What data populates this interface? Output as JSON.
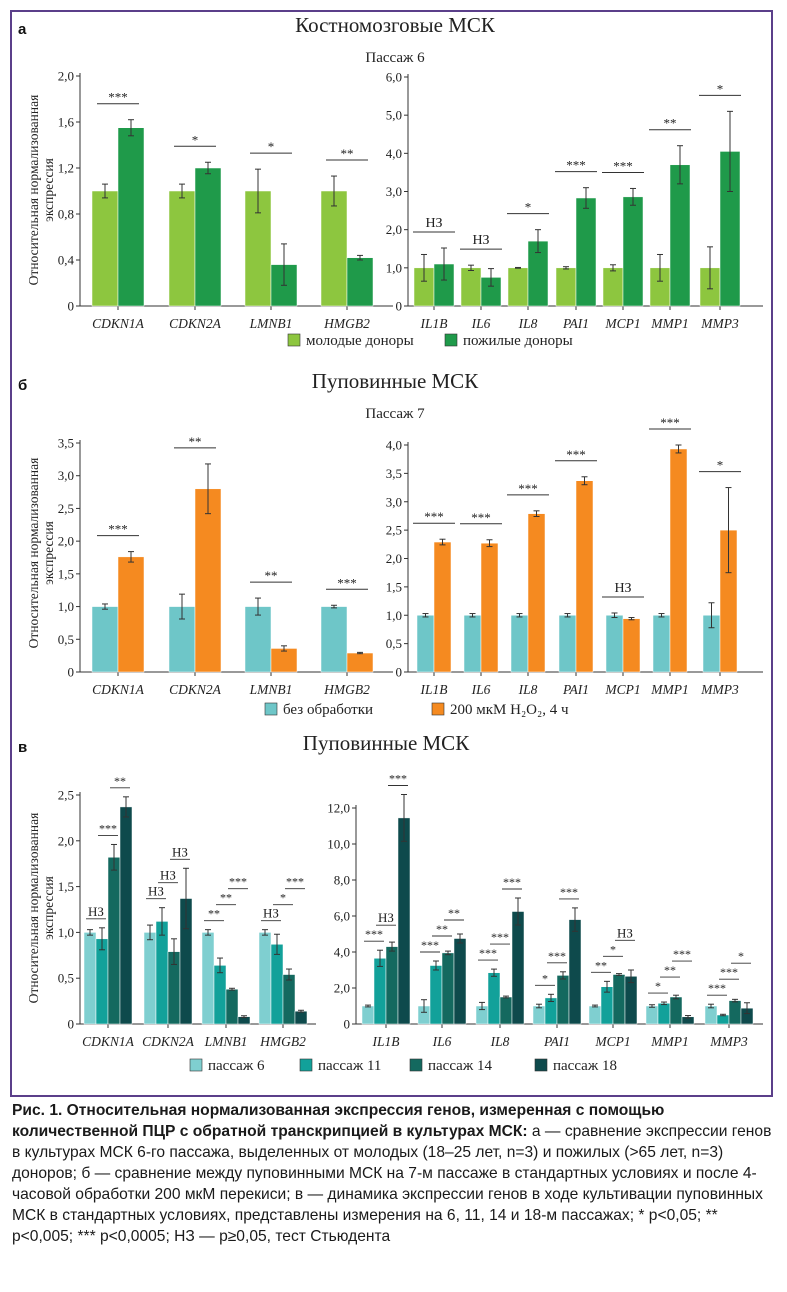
{
  "panels": [
    {
      "letter": "а",
      "title": "Костномозговые МСК",
      "subtitle": "Пассаж 6",
      "ylabel": "Относительная нормализованная экспрессия",
      "legend": [
        {
          "label": "молодые доноры",
          "color": "#8dc63f"
        },
        {
          "label": "пожилые доноры",
          "color": "#1f9a4a"
        }
      ]
    },
    {
      "letter": "б",
      "title": "Пуповинные МСК",
      "subtitle": "Пассаж 7",
      "ylabel": "Относительная нормализованная экспрессия",
      "legend": [
        {
          "label": "без обработки",
          "color": "#6ec6c8"
        },
        {
          "label": "200 мкМ H₂O₂, 4 ч",
          "color": "#f58a20"
        }
      ]
    },
    {
      "letter": "в",
      "title": "Пуповинные МСК",
      "subtitle": "",
      "ylabel": "Относительная нормализованная экспрессия",
      "legend": [
        {
          "label": "пассаж 6",
          "color": "#7fcfd0"
        },
        {
          "label": "пассаж 11",
          "color": "#12a19a"
        },
        {
          "label": "пассаж 14",
          "color": "#14695f"
        },
        {
          "label": "пассаж 18",
          "color": "#0e4a4c"
        }
      ]
    }
  ],
  "chart_data": [
    {
      "type": "bar",
      "panel": "а-left",
      "categories": [
        "CDKN1A",
        "CDKN2A",
        "LMNB1",
        "HMGB2"
      ],
      "ylim": [
        0,
        2.0
      ],
      "yticks": [
        "0",
        "0,4",
        "0,8",
        "1,2",
        "1,6",
        "2,0"
      ],
      "ytick_values": [
        0,
        0.4,
        0.8,
        1.2,
        1.6,
        2.0
      ],
      "series": [
        {
          "name": "молодые доноры",
          "color": "#8dc63f",
          "values": [
            1.0,
            1.0,
            1.0,
            1.0
          ],
          "errors": [
            0.06,
            0.06,
            0.19,
            0.13
          ]
        },
        {
          "name": "пожилые доноры",
          "color": "#1f9a4a",
          "values": [
            1.55,
            1.2,
            0.36,
            0.42
          ],
          "errors": [
            0.07,
            0.05,
            0.18,
            0.02
          ]
        }
      ],
      "significance": [
        "***",
        "*",
        "*",
        "**"
      ]
    },
    {
      "type": "bar",
      "panel": "а-right",
      "categories": [
        "IL1B",
        "IL6",
        "IL8",
        "PAI1",
        "MCP1",
        "MMP1",
        "MMP3"
      ],
      "ylim": [
        0,
        6.0
      ],
      "yticks": [
        "0",
        "1,0",
        "2,0",
        "3,0",
        "4,0",
        "5,0",
        "6,0"
      ],
      "ytick_values": [
        0,
        1,
        2,
        3,
        4,
        5,
        6
      ],
      "series": [
        {
          "name": "молодые доноры",
          "color": "#8dc63f",
          "values": [
            1.0,
            1.0,
            1.0,
            1.0,
            1.0,
            1.0,
            1.0
          ],
          "errors": [
            0.35,
            0.07,
            0.01,
            0.03,
            0.08,
            0.35,
            0.55
          ]
        },
        {
          "name": "пожилые доноры",
          "color": "#1f9a4a",
          "values": [
            1.1,
            0.75,
            1.7,
            2.83,
            2.86,
            3.7,
            4.05
          ],
          "errors": [
            0.42,
            0.23,
            0.3,
            0.27,
            0.22,
            0.5,
            1.05
          ]
        }
      ],
      "significance": [
        "НЗ",
        "НЗ",
        "*",
        "***",
        "***",
        "**",
        "*"
      ]
    },
    {
      "type": "bar",
      "panel": "б-left",
      "categories": [
        "CDKN1A",
        "CDKN2A",
        "LMNB1",
        "HMGB2"
      ],
      "ylim": [
        0,
        3.5
      ],
      "yticks": [
        "0",
        "0,5",
        "1,0",
        "1,5",
        "2,0",
        "2,5",
        "3,0",
        "3,5"
      ],
      "ytick_values": [
        0,
        0.5,
        1.0,
        1.5,
        2.0,
        2.5,
        3.0,
        3.5
      ],
      "series": [
        {
          "name": "без обработки",
          "color": "#6ec6c8",
          "values": [
            1.0,
            1.0,
            1.0,
            1.0
          ],
          "errors": [
            0.04,
            0.19,
            0.13,
            0.02
          ]
        },
        {
          "name": "200 мкМ H₂O₂, 4 ч",
          "color": "#f58a20",
          "values": [
            1.76,
            2.8,
            0.36,
            0.29
          ],
          "errors": [
            0.08,
            0.38,
            0.04,
            0.01
          ]
        }
      ],
      "significance": [
        "***",
        "**",
        "**",
        "***"
      ]
    },
    {
      "type": "bar",
      "panel": "б-right",
      "categories": [
        "IL1B",
        "IL6",
        "IL8",
        "PAI1",
        "MCP1",
        "MMP1",
        "MMP3"
      ],
      "ylim": [
        0,
        4.0
      ],
      "yticks": [
        "0",
        "0,5",
        "1,0",
        "1,5",
        "2,0",
        "2,5",
        "3,0",
        "3,5",
        "4,0"
      ],
      "ytick_values": [
        0,
        0.5,
        1.0,
        1.5,
        2.0,
        2.5,
        3.0,
        3.5,
        4.0
      ],
      "series": [
        {
          "name": "без обработки",
          "color": "#6ec6c8",
          "values": [
            1.0,
            1.0,
            1.0,
            1.0,
            1.0,
            1.0,
            1.0
          ],
          "errors": [
            0.03,
            0.03,
            0.03,
            0.03,
            0.04,
            0.03,
            0.22
          ]
        },
        {
          "name": "200 мкМ H₂O₂, 4 ч",
          "color": "#f58a20",
          "values": [
            2.29,
            2.27,
            2.79,
            3.37,
            0.94,
            3.93,
            2.5
          ],
          "errors": [
            0.05,
            0.06,
            0.05,
            0.07,
            0.02,
            0.07,
            0.75
          ]
        }
      ],
      "significance": [
        "***",
        "***",
        "***",
        "***",
        "НЗ",
        "***",
        "*"
      ]
    },
    {
      "type": "bar",
      "panel": "в-left",
      "categories": [
        "CDKN1A",
        "CDKN2A",
        "LMNB1",
        "HMGB2"
      ],
      "ylim": [
        0,
        2.5
      ],
      "yticks": [
        "0",
        "0,5",
        "1,0",
        "1,5",
        "2,0",
        "2,5"
      ],
      "ytick_values": [
        0,
        0.5,
        1.0,
        1.5,
        2.0,
        2.5
      ],
      "series": [
        {
          "name": "пассаж 6",
          "color": "#7fcfd0",
          "values": [
            1.0,
            1.0,
            1.0,
            1.0
          ],
          "errors": [
            0.03,
            0.08,
            0.03,
            0.03
          ]
        },
        {
          "name": "пассаж 11",
          "color": "#12a19a",
          "values": [
            0.93,
            1.12,
            0.64,
            0.87
          ],
          "errors": [
            0.12,
            0.15,
            0.08,
            0.11
          ]
        },
        {
          "name": "пассаж 14",
          "color": "#14695f",
          "values": [
            1.82,
            0.79,
            0.38,
            0.54
          ],
          "errors": [
            0.14,
            0.14,
            0.01,
            0.06
          ]
        },
        {
          "name": "пассаж 18",
          "color": "#0e4a4c",
          "values": [
            2.37,
            1.37,
            0.08,
            0.14
          ],
          "errors": [
            0.11,
            0.33,
            0.01,
            0.01
          ]
        }
      ],
      "significance_labels": [
        [
          "НЗ",
          "***",
          "**"
        ],
        [
          "НЗ",
          "НЗ",
          "НЗ"
        ],
        [
          "**",
          "**",
          "***"
        ],
        [
          "НЗ",
          "*",
          "***"
        ]
      ]
    },
    {
      "type": "bar",
      "panel": "в-right",
      "categories": [
        "IL1B",
        "IL6",
        "IL8",
        "PAI1",
        "MCP1",
        "MMP1",
        "MMP3"
      ],
      "ylim": [
        0,
        12.0
      ],
      "yticks": [
        "0",
        "2,0",
        "4,0",
        "6,0",
        "8,0",
        "10,0",
        "12,0"
      ],
      "ytick_values": [
        0,
        2,
        4,
        6,
        8,
        10,
        12
      ],
      "series": [
        {
          "name": "пассаж 6",
          "color": "#7fcfd0",
          "values": [
            1.0,
            1.0,
            1.0,
            1.0,
            1.0,
            1.0,
            1.0
          ],
          "errors": [
            0.05,
            0.35,
            0.2,
            0.1,
            0.05,
            0.07,
            0.1
          ]
        },
        {
          "name": "пассаж 11",
          "color": "#12a19a",
          "values": [
            3.65,
            3.25,
            2.85,
            1.45,
            2.07,
            1.15,
            0.5
          ],
          "errors": [
            0.45,
            0.25,
            0.2,
            0.2,
            0.3,
            0.07,
            0.04
          ]
        },
        {
          "name": "пассаж 14",
          "color": "#14695f",
          "values": [
            4.3,
            3.95,
            1.5,
            2.7,
            2.75,
            1.5,
            1.3
          ],
          "errors": [
            0.25,
            0.1,
            0.05,
            0.2,
            0.05,
            0.1,
            0.07
          ]
        },
        {
          "name": "пассаж 18",
          "color": "#0e4a4c",
          "values": [
            11.45,
            4.75,
            6.25,
            5.8,
            2.65,
            0.4,
            0.88
          ],
          "errors": [
            1.3,
            0.25,
            0.75,
            0.65,
            0.35,
            0.07,
            0.3
          ]
        }
      ],
      "significance_labels": [
        [
          "***",
          "НЗ",
          "***"
        ],
        [
          "***",
          "**",
          "**"
        ],
        [
          "***",
          "***",
          "***"
        ],
        [
          "*",
          "***",
          "***"
        ],
        [
          "**",
          "*",
          "НЗ"
        ],
        [
          "*",
          "**",
          "***"
        ],
        [
          "***",
          "***",
          "*"
        ]
      ]
    }
  ],
  "caption": {
    "title": "Рис. 1. Относительная нормализованная экспрессия генов, измеренная с помощью количественной ПЦР с обратной транскрипцией в культурах МСК:",
    "body": "а — сравнение экспрессии генов в культурах МСК 6-го пассажа, выделенных от молодых (18–25 лет, n=3) и пожилых (>65 лет, n=3) доноров; б — сравнение между пуповинными МСК на 7-м пассаже в стандартных условиях и после 4-часовой обработки 200 мкМ перекиси; в — динамика экспрессии генов в ходе культивации пуповинных МСК в стандартных условиях, представлены измерения на 6, 11, 14 и 18-м пассажах; * p<0,05; ** p<0,005; *** p<0,0005; НЗ — p≥0,05, тест Стьюдента"
  }
}
